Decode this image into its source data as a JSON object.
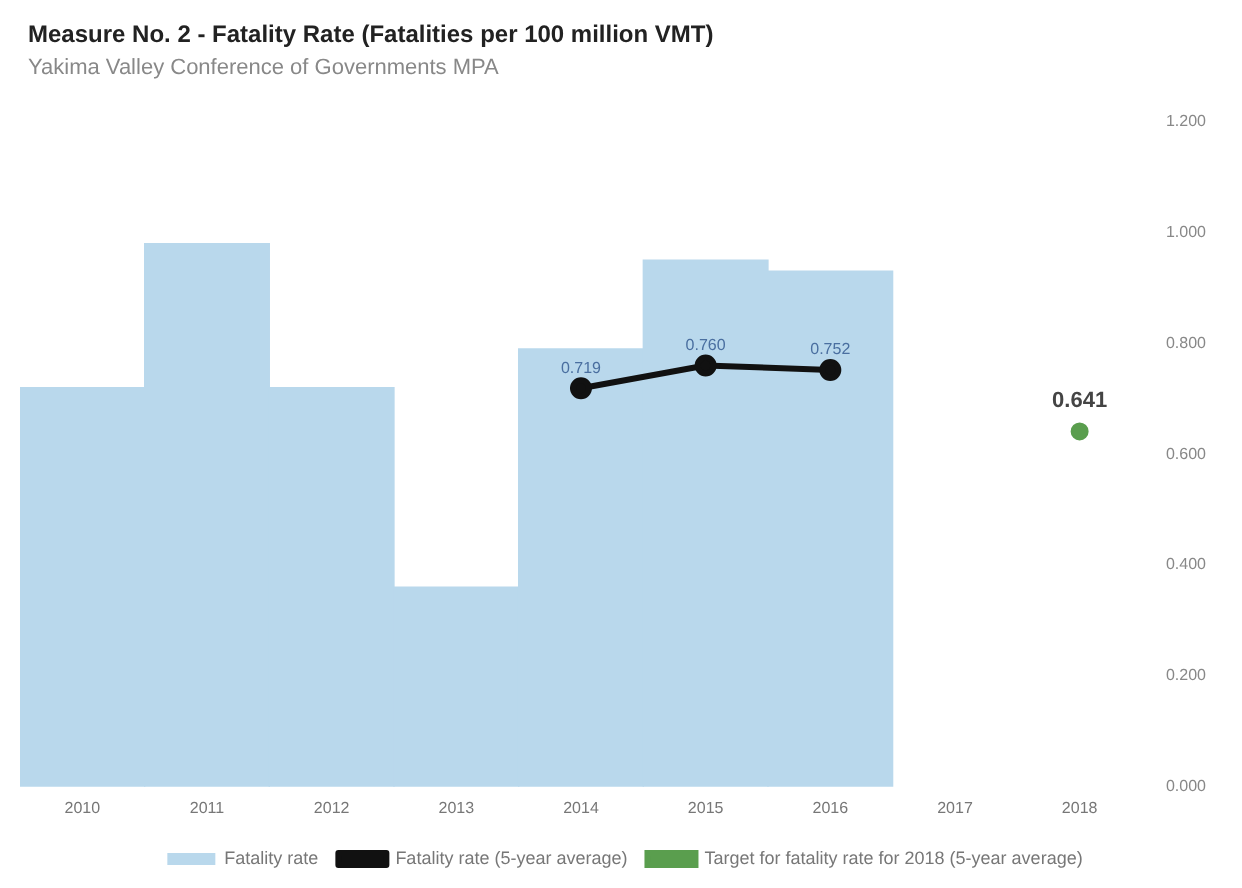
{
  "chart_data": {
    "type": "bar",
    "title": "Measure No. 2 - Fatality Rate (Fatalities per 100 million VMT)",
    "subtitle": "Yakima Valley Conference of Governments MPA",
    "categories": [
      "2010",
      "2011",
      "2012",
      "2013",
      "2014",
      "2015",
      "2016",
      "2017",
      "2018"
    ],
    "series": [
      {
        "name": "Fatality rate",
        "color": "#b9d8ec",
        "values": [
          0.72,
          0.98,
          0.72,
          0.36,
          0.79,
          0.95,
          0.93,
          null,
          null
        ]
      },
      {
        "name": "Fatality rate (5-year average)",
        "type": "line",
        "color": "#111111",
        "values": [
          null,
          null,
          null,
          null,
          0.719,
          0.76,
          0.752,
          null,
          null
        ],
        "value_labels": [
          null,
          null,
          null,
          null,
          "0.719",
          "0.760",
          "0.752",
          null,
          null
        ]
      },
      {
        "name": "Target for fatality rate for 2018 (5-year average)",
        "type": "scatter",
        "color": "#5a9e4e",
        "values": [
          null,
          null,
          null,
          null,
          null,
          null,
          null,
          null,
          0.641
        ],
        "value_labels": [
          null,
          null,
          null,
          null,
          null,
          null,
          null,
          null,
          "0.641"
        ]
      }
    ],
    "ylim": [
      0,
      1.2
    ],
    "yticks": [
      {
        "value": 0,
        "label": "0.000"
      },
      {
        "value": 0.2,
        "label": "0.200"
      },
      {
        "value": 0.4,
        "label": "0.400"
      },
      {
        "value": 0.6,
        "label": "0.600"
      },
      {
        "value": 0.8,
        "label": "0.800"
      },
      {
        "value": 1.0,
        "label": "1.000"
      },
      {
        "value": 1.2,
        "label": "1.200"
      }
    ],
    "grid": false,
    "legend": "bottom",
    "marker": "circle"
  }
}
